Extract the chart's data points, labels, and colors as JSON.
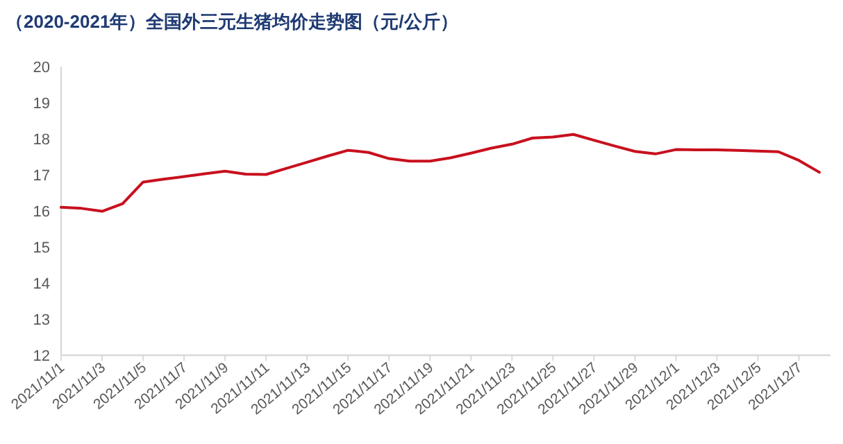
{
  "chart_data": {
    "type": "line",
    "title": "（2020-2021年）全国外三元生猪均价走势图（元/公斤）",
    "categories": [
      "2021/11/1",
      null,
      "2021/11/3",
      null,
      "2021/11/5",
      null,
      "2021/11/7",
      null,
      "2021/11/9",
      null,
      "2021/11/11",
      null,
      "2021/11/13",
      null,
      "2021/11/15",
      null,
      "2021/11/17",
      null,
      "2021/11/19",
      null,
      "2021/11/21",
      null,
      "2021/11/23",
      null,
      "2021/11/25",
      null,
      "2021/11/27",
      null,
      "2021/11/29",
      null,
      "2021/12/1",
      null,
      "2021/12/3",
      null,
      "2021/12/5",
      null,
      "2021/12/7",
      null
    ],
    "series": [
      {
        "color": "#c8101e",
        "values": [
          16.1,
          16.07,
          15.99,
          16.2,
          16.8,
          16.88,
          16.95,
          17.03,
          17.1,
          17.02,
          17.01,
          17.18,
          17.35,
          17.52,
          17.68,
          17.62,
          17.45,
          17.38,
          17.38,
          17.47,
          17.6,
          17.74,
          17.85,
          18.02,
          18.05,
          18.12,
          17.96,
          17.8,
          17.65,
          17.58,
          17.7,
          17.69,
          17.69,
          17.68,
          17.66,
          17.64,
          17.4,
          17.07
        ]
      }
    ],
    "ylim": [
      12,
      20
    ],
    "yticks": [
      12,
      13,
      14,
      15,
      16,
      17,
      18,
      19,
      20
    ],
    "marker": "none",
    "line_style": "solid"
  }
}
